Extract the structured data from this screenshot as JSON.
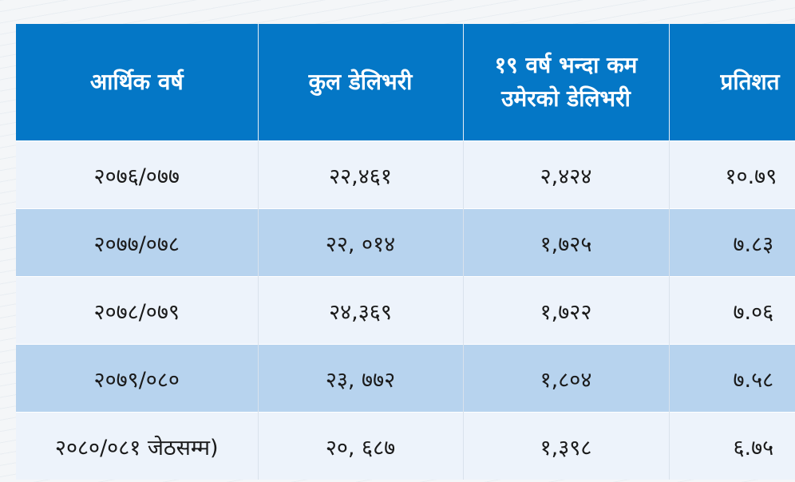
{
  "table": {
    "headers": [
      "आर्थिक वर्ष",
      "कुल डेलिभरी",
      "१९ वर्ष भन्दा कम उमेरको डेलिभरी",
      "प्रतिशत"
    ],
    "rows": [
      [
        "२०७६/०७७",
        "२२,४६१",
        "२,४२४",
        "१०.७९"
      ],
      [
        "२०७७/०७८",
        "२२, ०१४",
        "१,७२५",
        "७.८३"
      ],
      [
        "२०७८/०७९",
        "२४,३६९",
        "१,७२२",
        "७.०६"
      ],
      [
        "२०७९/०८०",
        "२३, ७७२",
        "१,८०४",
        "७.५८"
      ],
      [
        "२०८०/०८१ जेठसम्म)",
        "२०, ६८७",
        "१,३९८",
        "६.७५"
      ]
    ]
  },
  "colors": {
    "header_bg": "#0477c6",
    "row_light": "#edf3fb",
    "row_dark": "#b7d3ee"
  }
}
